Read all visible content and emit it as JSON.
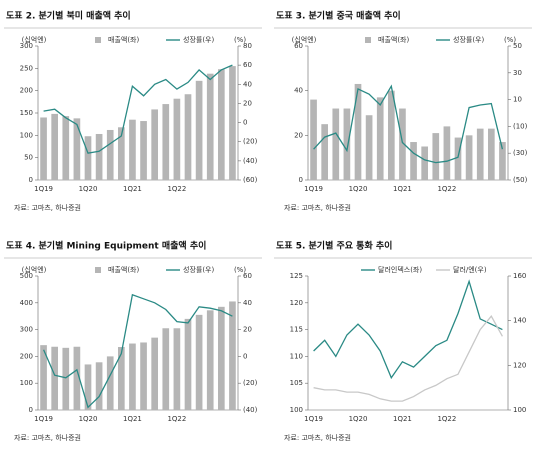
{
  "chart_data": [
    {
      "type": "bar",
      "title": "도표 2. 분기별 북미 매출액 추이",
      "source": "자료: 고마츠, 하나증권",
      "y_unit": "(십억엔)",
      "y2_unit": "(%)",
      "categories": [
        "1Q19",
        null,
        null,
        null,
        "1Q20",
        null,
        null,
        null,
        "1Q21",
        null,
        null,
        null,
        "1Q22",
        null,
        null,
        null,
        null,
        null
      ],
      "series": [
        {
          "name": "매출액(좌)",
          "type": "bar",
          "color": "#b5b5b5",
          "values": [
            140,
            148,
            143,
            138,
            98,
            103,
            112,
            118,
            135,
            132,
            158,
            170,
            182,
            192,
            222,
            238,
            248,
            255
          ]
        },
        {
          "name": "성장률(우)",
          "type": "line",
          "axis": "y2",
          "color": "#2a8a85",
          "values": [
            12,
            14,
            5,
            -2,
            -32,
            -30,
            -22,
            -14,
            38,
            28,
            40,
            45,
            35,
            42,
            55,
            45,
            55,
            60
          ]
        }
      ],
      "ylim": [
        0,
        300
      ],
      "yticks": [
        0,
        50,
        100,
        150,
        200,
        250,
        300
      ],
      "y2lim": [
        -60,
        80
      ],
      "y2ticks": [
        {
          "value": -60,
          "label": "(60)"
        },
        {
          "value": -40,
          "label": "(40)"
        },
        {
          "value": -20,
          "label": "(20)"
        },
        0,
        20,
        40,
        60,
        80
      ]
    },
    {
      "type": "bar",
      "title": "도표 3. 분기별 중국 매출액 추이",
      "source": "자료: 고마츠, 하나증권",
      "y_unit": "(십억엔)",
      "y2_unit": "(%)",
      "categories": [
        "1Q19",
        null,
        null,
        null,
        "1Q20",
        null,
        null,
        null,
        "1Q21",
        null,
        null,
        null,
        "1Q22",
        null,
        null,
        null,
        null,
        null
      ],
      "series": [
        {
          "name": "매출액(좌)",
          "type": "bar",
          "color": "#b5b5b5",
          "values": [
            36,
            25,
            32,
            32,
            43,
            29,
            37,
            40,
            32,
            17,
            15,
            21,
            24,
            19,
            20,
            23,
            23,
            17
          ]
        },
        {
          "name": "성장률(우)",
          "type": "line",
          "axis": "y2",
          "color": "#2a8a85",
          "values": [
            -27,
            -18,
            -15,
            -28,
            18,
            14,
            6,
            20,
            -22,
            -30,
            -35,
            -37,
            -36,
            -33,
            4,
            6,
            7,
            -27
          ]
        }
      ],
      "ylim": [
        0,
        60
      ],
      "yticks": [
        0,
        20,
        40,
        60
      ],
      "y2lim": [
        -50,
        50
      ],
      "y2ticks": [
        {
          "value": -50,
          "label": "(50)"
        },
        {
          "value": -30,
          "label": "(30)"
        },
        {
          "value": -10,
          "label": "(10)"
        },
        10,
        30,
        50
      ]
    },
    {
      "type": "bar",
      "title": "도표 4. 분기별 Mining Equipment 매출액 추이",
      "source": "자료: 고마츠, 하나증권",
      "y_unit": "(십억엔)",
      "y2_unit": "(%)",
      "categories": [
        "1Q19",
        null,
        null,
        null,
        "1Q20",
        null,
        null,
        null,
        "1Q21",
        null,
        null,
        null,
        "1Q22",
        null,
        null,
        null,
        null,
        null
      ],
      "series": [
        {
          "name": "매출액(좌)",
          "type": "bar",
          "color": "#b5b5b5",
          "values": [
            242,
            236,
            232,
            236,
            170,
            178,
            200,
            235,
            248,
            252,
            270,
            305,
            305,
            340,
            355,
            372,
            385,
            405
          ]
        },
        {
          "name": "성장률(우)",
          "type": "line",
          "axis": "y2",
          "color": "#2a8a85",
          "values": [
            5,
            -14,
            -16,
            -10,
            -38,
            -30,
            -14,
            2,
            46,
            43,
            40,
            35,
            26,
            25,
            37,
            36,
            34,
            30
          ]
        }
      ],
      "ylim": [
        0,
        500
      ],
      "yticks": [
        0,
        100,
        200,
        300,
        400,
        500
      ],
      "y2lim": [
        -40,
        60
      ],
      "y2ticks": [
        {
          "value": -40,
          "label": "(40)"
        },
        {
          "value": -20,
          "label": "(20)"
        },
        0,
        20,
        40,
        60
      ]
    },
    {
      "type": "line",
      "title": "도표 5. 분기별 주요 통화 추이",
      "source": "자료: 고마츠, 하나증권",
      "categories": [
        "1Q19",
        null,
        null,
        null,
        "1Q20",
        null,
        null,
        null,
        "1Q21",
        null,
        null,
        null,
        "1Q22",
        null,
        null,
        null,
        null,
        null
      ],
      "series": [
        {
          "name": "달러인덱스(좌)",
          "type": "line",
          "color": "#2a8a85",
          "values": [
            111,
            113,
            110,
            114,
            116,
            114,
            111,
            106,
            109,
            108,
            110,
            112,
            113,
            118,
            124,
            117,
            116,
            115
          ]
        },
        {
          "name": "달러/엔(우)",
          "type": "line",
          "axis": "y2",
          "color": "#c8c8c8",
          "values": [
            110,
            109,
            109,
            108,
            108,
            107,
            105,
            104,
            104,
            106,
            109,
            111,
            114,
            116,
            126,
            136,
            142,
            133
          ]
        }
      ],
      "ylim": [
        100,
        125
      ],
      "yticks": [
        100,
        105,
        110,
        115,
        120,
        125
      ],
      "y2lim": [
        100,
        160
      ],
      "y2ticks": [
        100,
        120,
        140,
        160
      ]
    }
  ]
}
